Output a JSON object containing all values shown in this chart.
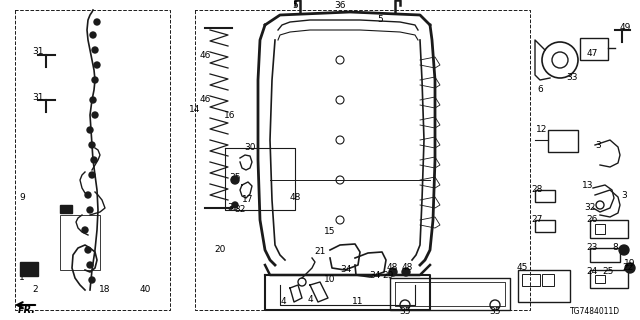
{
  "bg_color": "#ffffff",
  "diagram_code": "TG7484011D",
  "image_b64": ""
}
